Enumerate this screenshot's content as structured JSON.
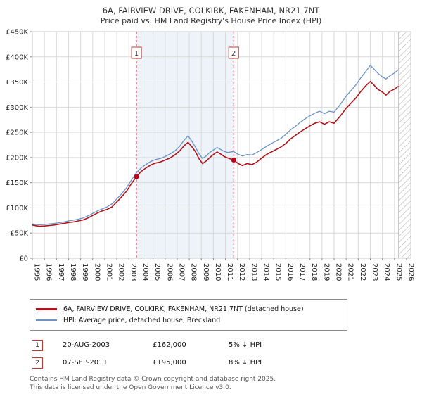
{
  "title": "6A, FAIRVIEW DRIVE, COLKIRK, FAKENHAM, NR21 7NT",
  "subtitle": "Price paid vs. HM Land Registry's House Price Index (HPI)",
  "chart_data": {
    "type": "line",
    "title": "6A, FAIRVIEW DRIVE, COLKIRK, FAKENHAM, NR21 7NT — Price paid vs. HPI",
    "xlabel": "",
    "ylabel": "",
    "xlim": [
      1995,
      2026.35
    ],
    "ylim": [
      0,
      450000
    ],
    "grid": true,
    "legend_position": "bottom",
    "y_ticks": [
      0,
      50000,
      100000,
      150000,
      200000,
      250000,
      300000,
      350000,
      400000,
      450000
    ],
    "y_tick_labels": [
      "£0",
      "£50K",
      "£100K",
      "£150K",
      "£200K",
      "£250K",
      "£300K",
      "£350K",
      "£400K",
      "£450K"
    ],
    "x_ticks": [
      1995,
      1996,
      1997,
      1998,
      1999,
      2000,
      2001,
      2002,
      2003,
      2004,
      2005,
      2006,
      2007,
      2008,
      2009,
      2010,
      2011,
      2012,
      2013,
      2014,
      2015,
      2016,
      2017,
      2018,
      2019,
      2020,
      2021,
      2022,
      2023,
      2024,
      2025,
      2026
    ],
    "x_tick_labels": [
      "1995",
      "1996",
      "1997",
      "1998",
      "1999",
      "2000",
      "2001",
      "2002",
      "2003",
      "2004",
      "2005",
      "2006",
      "2007",
      "2008",
      "2009",
      "2010",
      "2011",
      "2012",
      "2013",
      "2014",
      "2015",
      "2016",
      "2017",
      "2018",
      "2019",
      "2020",
      "2021",
      "2022",
      "2023",
      "2024",
      "2025",
      "2026"
    ],
    "x": [
      1995.0,
      1995.3,
      1995.6,
      1996.0,
      1996.4,
      1996.8,
      1997.2,
      1997.6,
      1998.0,
      1998.4,
      1998.8,
      1999.2,
      1999.6,
      2000.0,
      2000.4,
      2000.8,
      2001.2,
      2001.6,
      2002.0,
      2002.4,
      2002.8,
      2003.2,
      2003.63,
      2004.0,
      2004.4,
      2004.8,
      2005.2,
      2005.6,
      2006.0,
      2006.4,
      2006.8,
      2007.2,
      2007.6,
      2007.9,
      2008.2,
      2008.5,
      2008.8,
      2009.1,
      2009.4,
      2009.7,
      2010.0,
      2010.3,
      2010.6,
      2010.9,
      2011.2,
      2011.68,
      2012.0,
      2012.4,
      2012.8,
      2013.2,
      2013.6,
      2014.0,
      2014.4,
      2014.8,
      2015.2,
      2015.6,
      2016.0,
      2016.4,
      2016.8,
      2017.2,
      2017.6,
      2018.0,
      2018.4,
      2018.8,
      2019.2,
      2019.6,
      2020.0,
      2020.5,
      2021.0,
      2021.4,
      2021.8,
      2022.2,
      2022.6,
      2023.0,
      2023.3,
      2023.6,
      2024.0,
      2024.3,
      2024.6,
      2025.0,
      2025.3
    ],
    "series": [
      {
        "name": "6A, FAIRVIEW DRIVE, COLKIRK, FAKENHAM, NR21 7NT (detached house)",
        "color": "#b01218",
        "values": [
          66000,
          64500,
          63500,
          64000,
          65000,
          66000,
          67500,
          69000,
          71000,
          72000,
          74000,
          76000,
          80000,
          85000,
          90000,
          94000,
          97000,
          102000,
          112000,
          122000,
          133000,
          148000,
          162000,
          172000,
          179000,
          185000,
          189000,
          191000,
          195000,
          199000,
          205000,
          213000,
          224000,
          230000,
          222000,
          212000,
          198000,
          188000,
          193000,
          200000,
          206000,
          211000,
          207000,
          202000,
          199000,
          195000,
          189000,
          184000,
          188000,
          186000,
          191000,
          199000,
          206000,
          211000,
          216000,
          221000,
          228000,
          237000,
          244000,
          251000,
          257000,
          263000,
          268000,
          271000,
          266000,
          271000,
          268000,
          282000,
          298000,
          308000,
          318000,
          331000,
          342000,
          351000,
          344000,
          336000,
          330000,
          324000,
          331000,
          336000,
          341000
        ]
      },
      {
        "name": "HPI: Average price, detached house, Breckland",
        "color": "#6b93c4",
        "values": [
          68000,
          67000,
          66500,
          67000,
          68000,
          69000,
          70500,
          72000,
          74000,
          75500,
          77500,
          80000,
          84000,
          89000,
          94000,
          98000,
          102000,
          108000,
          118000,
          128000,
          140000,
          155000,
          170000,
          179000,
          186000,
          192000,
          196000,
          198000,
          202000,
          207000,
          213000,
          222000,
          235000,
          243000,
          233000,
          221000,
          208000,
          198000,
          203000,
          210000,
          215000,
          220000,
          216000,
          212000,
          210000,
          212000,
          207000,
          203000,
          206000,
          205000,
          210000,
          216000,
          222000,
          228000,
          233000,
          238000,
          246000,
          255000,
          262000,
          270000,
          277000,
          283000,
          288000,
          292000,
          287000,
          292000,
          290000,
          305000,
          322000,
          333000,
          344000,
          358000,
          370000,
          383000,
          376000,
          368000,
          360000,
          356000,
          362000,
          368000,
          374000
        ]
      }
    ],
    "markers": [
      {
        "label": "1",
        "x": 2003.63,
        "value": 162000
      },
      {
        "label": "2",
        "x": 2011.68,
        "value": 195000
      }
    ],
    "shaded_region": [
      2003.63,
      2011.68
    ],
    "hatched_region": [
      2025.35,
      2026.35
    ],
    "colors": {
      "grid": "#d9d9d9",
      "plot_border": "#c8c8c8",
      "shaded_fill": "#eef3fa",
      "marker_line": "#d05060",
      "marker_box_border": "#c0392b",
      "marker_dot": "#c00018",
      "hatch_stroke": "#c0c0c0"
    }
  },
  "legend": {
    "items": [
      {
        "label": "6A, FAIRVIEW DRIVE, COLKIRK, FAKENHAM, NR21 7NT (detached house)",
        "color": "#b01218"
      },
      {
        "label": "HPI: Average price, detached house, Breckland",
        "color": "#6b93c4"
      }
    ]
  },
  "annotations": [
    {
      "num": "1",
      "date": "20-AUG-2003",
      "price": "£162,000",
      "delta": "5% ↓ HPI"
    },
    {
      "num": "2",
      "date": "07-SEP-2011",
      "price": "£195,000",
      "delta": "8% ↓ HPI"
    }
  ],
  "footer": {
    "line1": "Contains HM Land Registry data © Crown copyright and database right 2025.",
    "line2": "This data is licensed under the Open Government Licence v3.0."
  }
}
